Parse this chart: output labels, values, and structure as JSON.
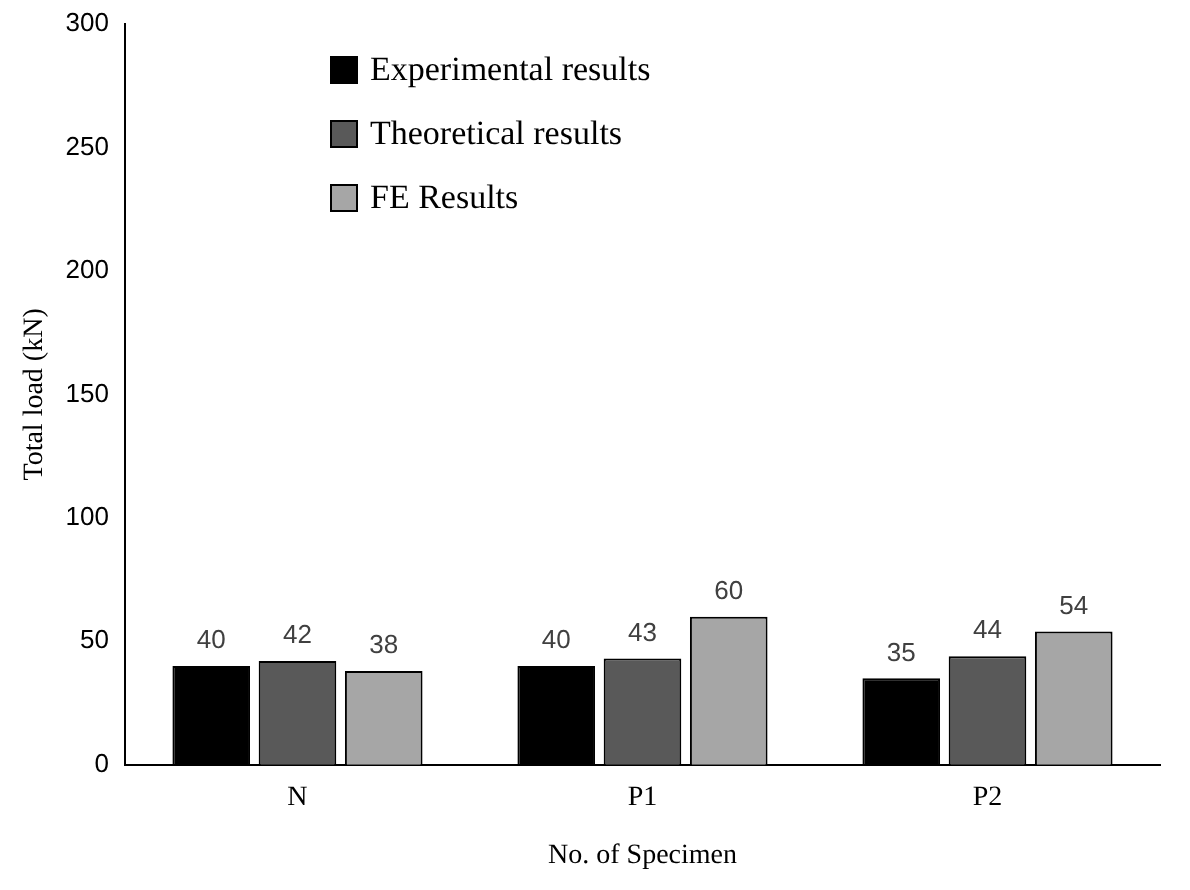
{
  "chart_data": {
    "type": "bar",
    "xlabel": "No. of Specimen",
    "ylabel": "Total load (kN)",
    "categories": [
      "N",
      "P1",
      "P2"
    ],
    "series": [
      {
        "name": "Experimental results",
        "color": "#000000",
        "values": [
          40,
          40,
          35
        ]
      },
      {
        "name": "Theoretical results",
        "color": "#595959",
        "values": [
          42,
          43,
          44
        ]
      },
      {
        "name": "FE Results",
        "color": "#a6a6a6",
        "values": [
          38,
          60,
          54
        ]
      }
    ],
    "ylim": [
      0,
      300
    ],
    "yticks": [
      0,
      50,
      100,
      150,
      200,
      250,
      300
    ],
    "data_labels": true,
    "legend": "top left",
    "grid": false
  }
}
